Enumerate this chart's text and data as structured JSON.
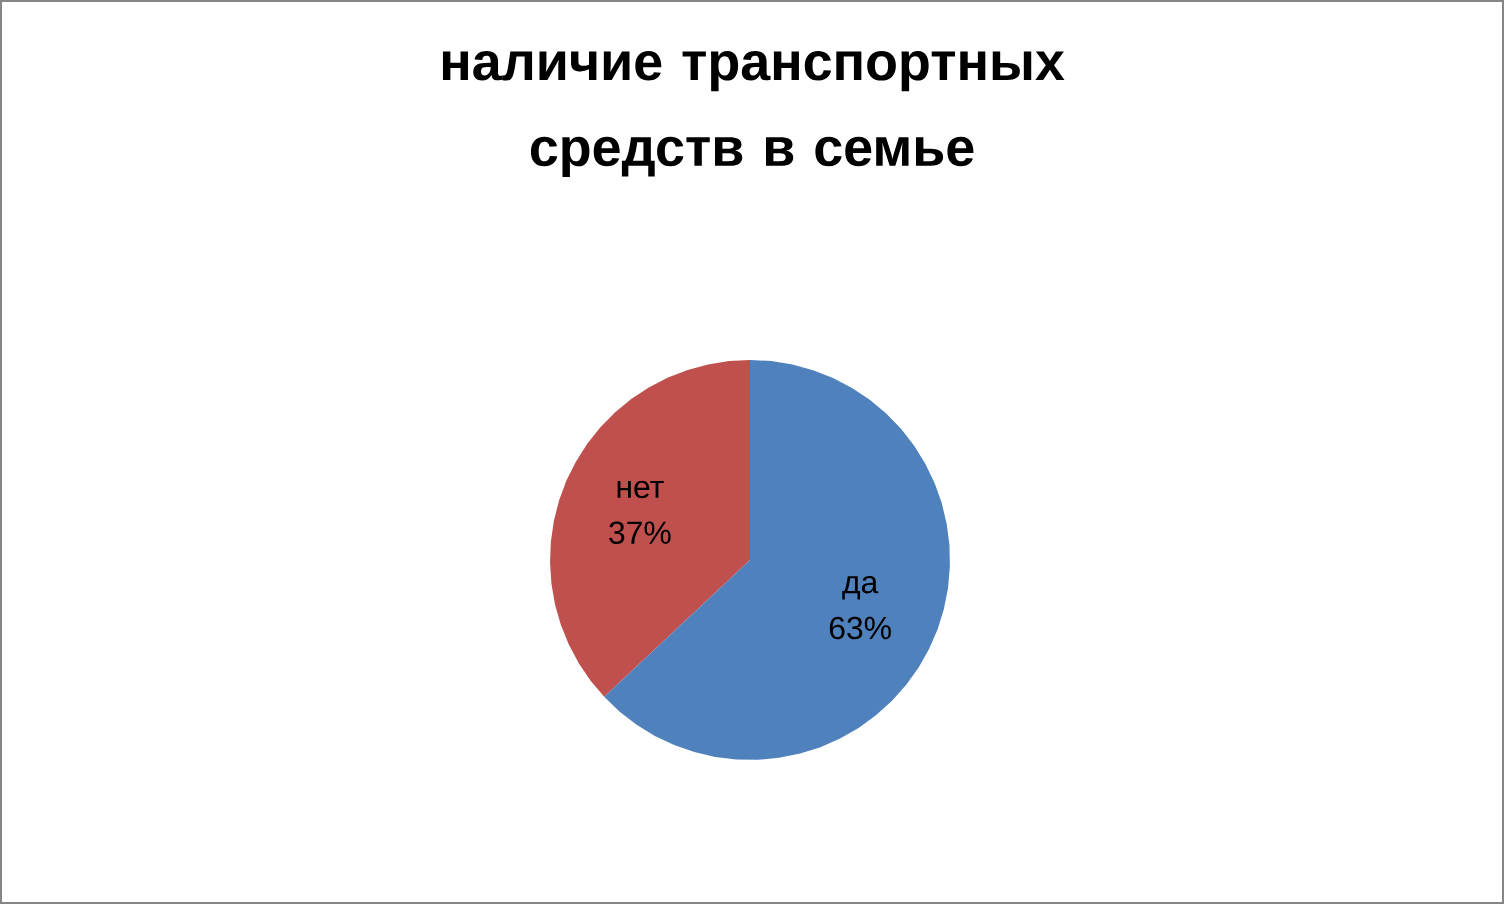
{
  "chart_data": {
    "type": "pie",
    "title": "наличие транспортных средств в семье",
    "categories": [
      "да",
      "нет"
    ],
    "values": [
      63,
      37
    ],
    "value_labels": [
      "63%",
      "37%"
    ],
    "colors": [
      "#4f81bd",
      "#c0504d"
    ]
  }
}
